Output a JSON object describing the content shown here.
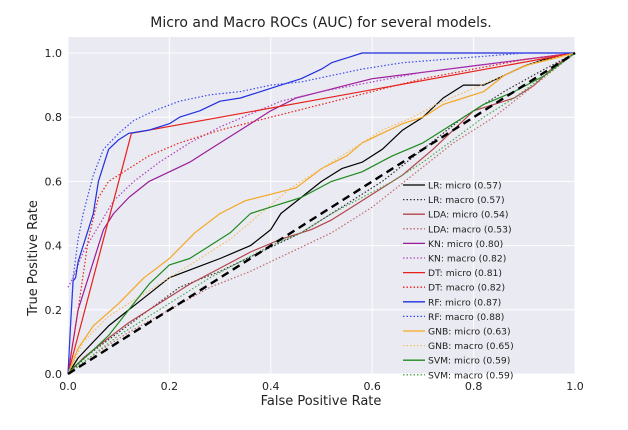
{
  "chart_data": {
    "type": "line",
    "title": "Micro and Macro ROCs (AUC) for several models.",
    "xlabel": "False Positive Rate",
    "ylabel": "True Positive Rate",
    "xlim": [
      0,
      1
    ],
    "ylim": [
      0,
      1.05
    ],
    "xticks": [
      "0.0",
      "0.2",
      "0.4",
      "0.6",
      "0.8",
      "1.0"
    ],
    "yticks": [
      "0.0",
      "0.2",
      "0.4",
      "0.6",
      "0.8",
      "1.0"
    ],
    "xtick_values": [
      0,
      0.2,
      0.4,
      0.6,
      0.8,
      1.0
    ],
    "ytick_values": [
      0,
      0.2,
      0.4,
      0.6,
      0.8,
      1.0
    ],
    "grid": true,
    "legend_position": "lower-right",
    "diagonal": {
      "x": [
        0,
        1
      ],
      "y": [
        0,
        1
      ],
      "color": "#000000",
      "style": "dashed"
    },
    "series": [
      {
        "name": "LR: micro (0.57)",
        "color": "#000000",
        "style": "solid",
        "x": [
          0,
          0.02,
          0.05,
          0.08,
          0.12,
          0.16,
          0.2,
          0.25,
          0.3,
          0.36,
          0.4,
          0.42,
          0.46,
          0.5,
          0.54,
          0.58,
          0.62,
          0.66,
          0.7,
          0.74,
          0.78,
          0.82,
          0.86,
          0.9,
          0.94,
          1.0
        ],
        "y": [
          0,
          0.05,
          0.1,
          0.15,
          0.2,
          0.25,
          0.3,
          0.33,
          0.36,
          0.4,
          0.45,
          0.5,
          0.55,
          0.6,
          0.64,
          0.66,
          0.7,
          0.76,
          0.8,
          0.86,
          0.9,
          0.9,
          0.93,
          0.96,
          0.98,
          1.0
        ]
      },
      {
        "name": "LR: macro (0.57)",
        "color": "#333333",
        "style": "dotted",
        "x": [
          0,
          0.04,
          0.1,
          0.16,
          0.22,
          0.3,
          0.38,
          0.46,
          0.54,
          0.62,
          0.7,
          0.78,
          0.86,
          0.94,
          1.0
        ],
        "y": [
          0,
          0.06,
          0.13,
          0.2,
          0.27,
          0.32,
          0.38,
          0.44,
          0.52,
          0.6,
          0.7,
          0.8,
          0.88,
          0.95,
          1.0
        ]
      },
      {
        "name": "LDA: micro (0.54)",
        "color": "#b5444b",
        "style": "solid",
        "x": [
          0,
          0.03,
          0.07,
          0.12,
          0.18,
          0.24,
          0.3,
          0.36,
          0.42,
          0.48,
          0.52,
          0.56,
          0.6,
          0.66,
          0.72,
          0.76,
          0.8,
          0.84,
          0.88,
          0.92,
          0.96,
          1.0
        ],
        "y": [
          0,
          0.05,
          0.1,
          0.16,
          0.22,
          0.28,
          0.33,
          0.38,
          0.42,
          0.45,
          0.48,
          0.52,
          0.56,
          0.62,
          0.7,
          0.76,
          0.82,
          0.84,
          0.86,
          0.9,
          0.96,
          1.0
        ]
      },
      {
        "name": "LDA: macro (0.53)",
        "color": "#c06a6a",
        "style": "dotted",
        "x": [
          0,
          0.06,
          0.12,
          0.2,
          0.28,
          0.36,
          0.44,
          0.52,
          0.6,
          0.68,
          0.76,
          0.84,
          0.92,
          1.0
        ],
        "y": [
          0,
          0.07,
          0.13,
          0.2,
          0.27,
          0.32,
          0.38,
          0.44,
          0.52,
          0.62,
          0.72,
          0.8,
          0.9,
          1.0
        ]
      },
      {
        "name": "KN: micro (0.80)",
        "color": "#9a1e9a",
        "style": "solid",
        "x": [
          0,
          0.02,
          0.04,
          0.06,
          0.07,
          0.09,
          0.12,
          0.16,
          0.2,
          0.24,
          0.28,
          0.32,
          0.36,
          0.4,
          0.45,
          0.5,
          0.55,
          0.6,
          0.7,
          0.8,
          0.9,
          1.0
        ],
        "y": [
          0,
          0.2,
          0.3,
          0.4,
          0.45,
          0.5,
          0.55,
          0.6,
          0.63,
          0.66,
          0.7,
          0.74,
          0.78,
          0.82,
          0.86,
          0.88,
          0.9,
          0.92,
          0.94,
          0.96,
          0.98,
          1.0
        ]
      },
      {
        "name": "KN: macro (0.82)",
        "color": "#b040c0",
        "style": "dotted",
        "x": [
          0,
          0.01,
          0.03,
          0.06,
          0.09,
          0.13,
          0.18,
          0.24,
          0.3,
          0.36,
          0.42,
          0.5,
          0.6,
          0.7,
          0.8,
          0.9,
          1.0
        ],
        "y": [
          0.27,
          0.3,
          0.38,
          0.46,
          0.54,
          0.6,
          0.66,
          0.72,
          0.77,
          0.81,
          0.85,
          0.88,
          0.91,
          0.94,
          0.96,
          0.98,
          1.0
        ]
      },
      {
        "name": "DT: micro (0.81)",
        "color": "#e8201a",
        "style": "solid",
        "x": [
          0,
          0.125,
          1.0
        ],
        "y": [
          0,
          0.75,
          1.0
        ]
      },
      {
        "name": "DT: macro (0.82)",
        "color": "#e8201a",
        "style": "dotted",
        "x": [
          0,
          0.02,
          0.04,
          0.06,
          0.08,
          0.12,
          0.16,
          0.22,
          0.3,
          0.4,
          0.5,
          0.6,
          0.7,
          0.8,
          0.9,
          1.0
        ],
        "y": [
          0,
          0.2,
          0.42,
          0.55,
          0.6,
          0.64,
          0.68,
          0.72,
          0.76,
          0.8,
          0.84,
          0.88,
          0.92,
          0.95,
          0.98,
          1.0
        ]
      },
      {
        "name": "RF: micro (0.87)",
        "color": "#1f2ee0",
        "style": "solid",
        "x": [
          0,
          0.005,
          0.01,
          0.015,
          0.02,
          0.03,
          0.04,
          0.05,
          0.06,
          0.08,
          0.1,
          0.12,
          0.16,
          0.2,
          0.22,
          0.26,
          0.3,
          0.34,
          0.38,
          0.42,
          0.46,
          0.5,
          0.52,
          0.56,
          0.58,
          0.7,
          0.8,
          0.9,
          1.0
        ],
        "y": [
          0,
          0.15,
          0.29,
          0.3,
          0.35,
          0.4,
          0.45,
          0.5,
          0.6,
          0.7,
          0.73,
          0.75,
          0.76,
          0.78,
          0.8,
          0.82,
          0.85,
          0.86,
          0.88,
          0.9,
          0.92,
          0.95,
          0.97,
          0.99,
          1.0,
          1.0,
          1.0,
          1.0,
          1.0
        ]
      },
      {
        "name": "RF: macro (0.88)",
        "color": "#3b4cf0",
        "style": "dotted",
        "x": [
          0,
          0.005,
          0.01,
          0.02,
          0.03,
          0.05,
          0.07,
          0.1,
          0.13,
          0.17,
          0.22,
          0.28,
          0.34,
          0.4,
          0.46,
          0.52,
          0.58,
          0.66,
          0.74,
          0.82,
          0.9,
          1.0
        ],
        "y": [
          0,
          0.15,
          0.3,
          0.42,
          0.5,
          0.62,
          0.7,
          0.75,
          0.79,
          0.82,
          0.85,
          0.87,
          0.88,
          0.9,
          0.91,
          0.93,
          0.95,
          0.97,
          0.98,
          0.99,
          1.0,
          1.0
        ]
      },
      {
        "name": "GNB: micro (0.63)",
        "color": "#f5a623",
        "style": "solid",
        "x": [
          0,
          0.02,
          0.05,
          0.1,
          0.15,
          0.2,
          0.25,
          0.3,
          0.35,
          0.4,
          0.45,
          0.5,
          0.55,
          0.58,
          0.62,
          0.66,
          0.7,
          0.74,
          0.78,
          0.82,
          0.86,
          0.9,
          0.95,
          1.0
        ],
        "y": [
          0,
          0.08,
          0.15,
          0.22,
          0.3,
          0.36,
          0.44,
          0.5,
          0.54,
          0.56,
          0.58,
          0.64,
          0.68,
          0.72,
          0.75,
          0.78,
          0.8,
          0.84,
          0.86,
          0.88,
          0.93,
          0.96,
          0.98,
          1.0
        ]
      },
      {
        "name": "GNB: macro (0.65)",
        "color": "#f2bf5e",
        "style": "dotted",
        "x": [
          0,
          0.03,
          0.08,
          0.14,
          0.2,
          0.26,
          0.32,
          0.38,
          0.44,
          0.5,
          0.56,
          0.62,
          0.68,
          0.74,
          0.8,
          0.86,
          0.92,
          1.0
        ],
        "y": [
          0,
          0.1,
          0.18,
          0.24,
          0.3,
          0.36,
          0.42,
          0.5,
          0.58,
          0.64,
          0.7,
          0.76,
          0.8,
          0.85,
          0.89,
          0.93,
          0.97,
          1.0
        ]
      },
      {
        "name": "SVM: micro (0.59)",
        "color": "#1d8a1d",
        "style": "solid",
        "x": [
          0,
          0.01,
          0.04,
          0.08,
          0.12,
          0.16,
          0.2,
          0.24,
          0.28,
          0.32,
          0.36,
          0.4,
          0.46,
          0.52,
          0.58,
          0.64,
          0.7,
          0.76,
          0.82,
          0.88,
          0.94,
          1.0
        ],
        "y": [
          0,
          0.02,
          0.06,
          0.12,
          0.2,
          0.28,
          0.34,
          0.36,
          0.4,
          0.44,
          0.5,
          0.52,
          0.55,
          0.6,
          0.63,
          0.68,
          0.72,
          0.78,
          0.84,
          0.88,
          0.93,
          1.0
        ]
      },
      {
        "name": "SVM: macro (0.59)",
        "color": "#4caa4c",
        "style": "dotted",
        "x": [
          0,
          0.05,
          0.1,
          0.16,
          0.22,
          0.28,
          0.34,
          0.4,
          0.46,
          0.52,
          0.58,
          0.64,
          0.7,
          0.76,
          0.82,
          0.88,
          0.94,
          1.0
        ],
        "y": [
          0,
          0.06,
          0.12,
          0.18,
          0.24,
          0.3,
          0.35,
          0.4,
          0.44,
          0.5,
          0.55,
          0.6,
          0.66,
          0.73,
          0.8,
          0.86,
          0.93,
          1.0
        ]
      }
    ]
  }
}
